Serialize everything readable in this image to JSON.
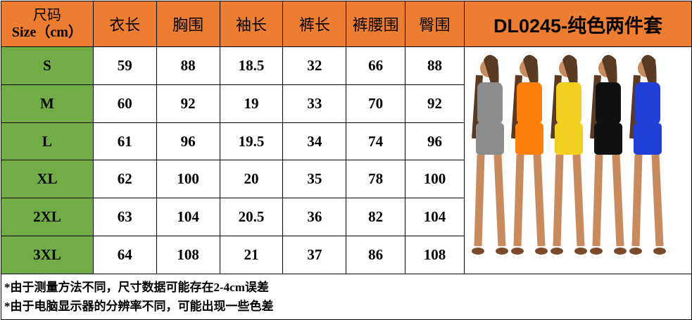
{
  "header": {
    "size_label_cn": "尺码",
    "size_label_en": "Size（cm）",
    "columns": [
      "衣长",
      "胸围",
      "袖长",
      "裤长",
      "裤腰围",
      "臀围"
    ],
    "title": "DL0245-纯色两件套"
  },
  "rows": [
    {
      "size": "S",
      "values": [
        "59",
        "88",
        "18.5",
        "32",
        "66",
        "88"
      ]
    },
    {
      "size": "M",
      "values": [
        "60",
        "92",
        "19",
        "33",
        "70",
        "92"
      ]
    },
    {
      "size": "L",
      "values": [
        "61",
        "96",
        "19.5",
        "34",
        "74",
        "96"
      ]
    },
    {
      "size": "XL",
      "values": [
        "62",
        "100",
        "20",
        "35",
        "78",
        "100"
      ]
    },
    {
      "size": "2XL",
      "values": [
        "63",
        "104",
        "20.5",
        "36",
        "82",
        "104"
      ]
    },
    {
      "size": "3XL",
      "values": [
        "64",
        "108",
        "21",
        "37",
        "86",
        "108"
      ]
    }
  ],
  "notes": [
    "*由于测量方法不同，尺寸数据可能存在2-4cm误差",
    "*由于电脑显示器的分辨率不同，可能出现一些色差"
  ],
  "colors": {
    "header": "#ED7D31",
    "size_column": "#70AD47",
    "product_colors": [
      "#8C8C8C",
      "#FF7F0E",
      "#F2D022",
      "#111111",
      "#1F3FD6"
    ]
  }
}
